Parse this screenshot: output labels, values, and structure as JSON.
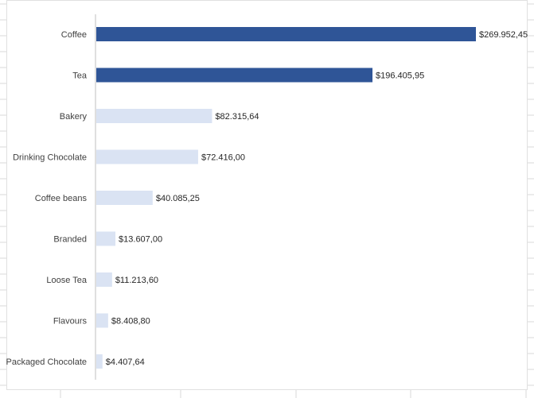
{
  "colors": {
    "background": "#ffffff",
    "gridline": "#d9d9d9",
    "axis": "#bfbfbf",
    "highlight_bar": "#2f5597",
    "normal_bar": "#dae3f3",
    "label_text": "#404040"
  },
  "chart_data": {
    "type": "bar",
    "orientation": "horizontal",
    "categories": [
      "Coffee",
      "Tea",
      "Bakery",
      "Drinking Chocolate",
      "Coffee beans",
      "Branded",
      "Loose Tea",
      "Flavours",
      "Packaged Chocolate"
    ],
    "values": [
      269952.45,
      196405.95,
      82315.64,
      72416.0,
      40085.25,
      13607.0,
      11213.6,
      8408.8,
      4407.64
    ],
    "value_labels": [
      "$269.952,45",
      "$196.405,95",
      "$82.315,64",
      "$72.416,00",
      "$40.085,25",
      "$13.607,00",
      "$11.213,60",
      "$8.408,80",
      "$4.407,64"
    ],
    "highlighted": [
      true,
      true,
      false,
      false,
      false,
      false,
      false,
      false,
      false
    ],
    "title": "",
    "xlabel": "",
    "ylabel": "",
    "xlim": [
      0,
      269952.45
    ],
    "grid": false,
    "legend": "none"
  }
}
